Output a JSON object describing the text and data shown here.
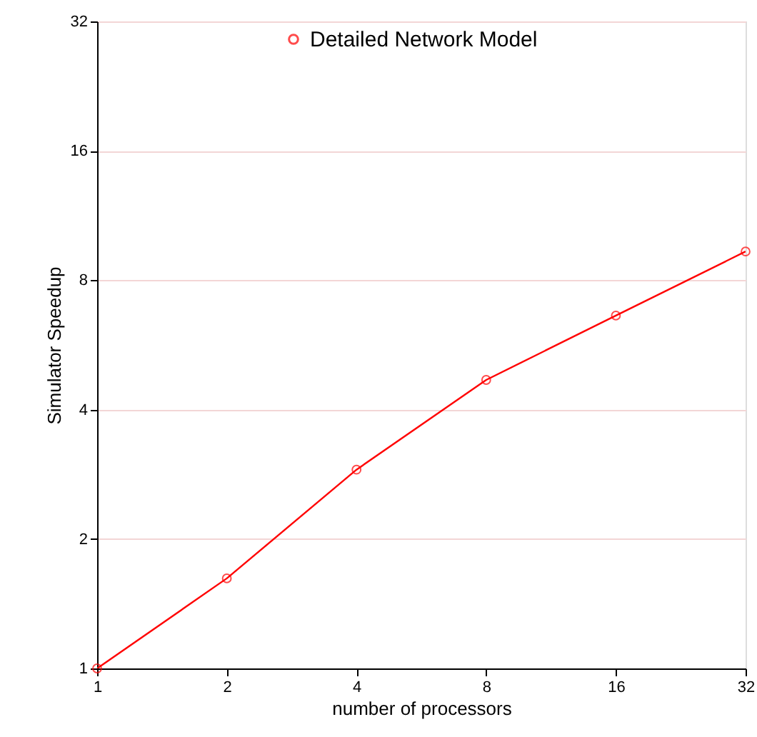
{
  "chart_data": {
    "type": "line",
    "xlabel": "number of processors",
    "ylabel": "Simulator Speedup",
    "x": [
      1,
      2,
      4,
      8,
      16,
      32
    ],
    "series": [
      {
        "name": "Detailed Network Model",
        "color": "#ff0000",
        "values": [
          1,
          1.62,
          2.9,
          4.69,
          6.62,
          9.33
        ]
      }
    ],
    "log": "xy",
    "xlim": [
      1,
      32
    ],
    "xticks": [
      1,
      2,
      4,
      8,
      16,
      32
    ],
    "ylim": [
      1,
      32
    ],
    "yticks": [
      1,
      2,
      4,
      8,
      16,
      32
    ],
    "grid": "y",
    "legend": "top",
    "marker": "circle",
    "line_style": "solid"
  }
}
